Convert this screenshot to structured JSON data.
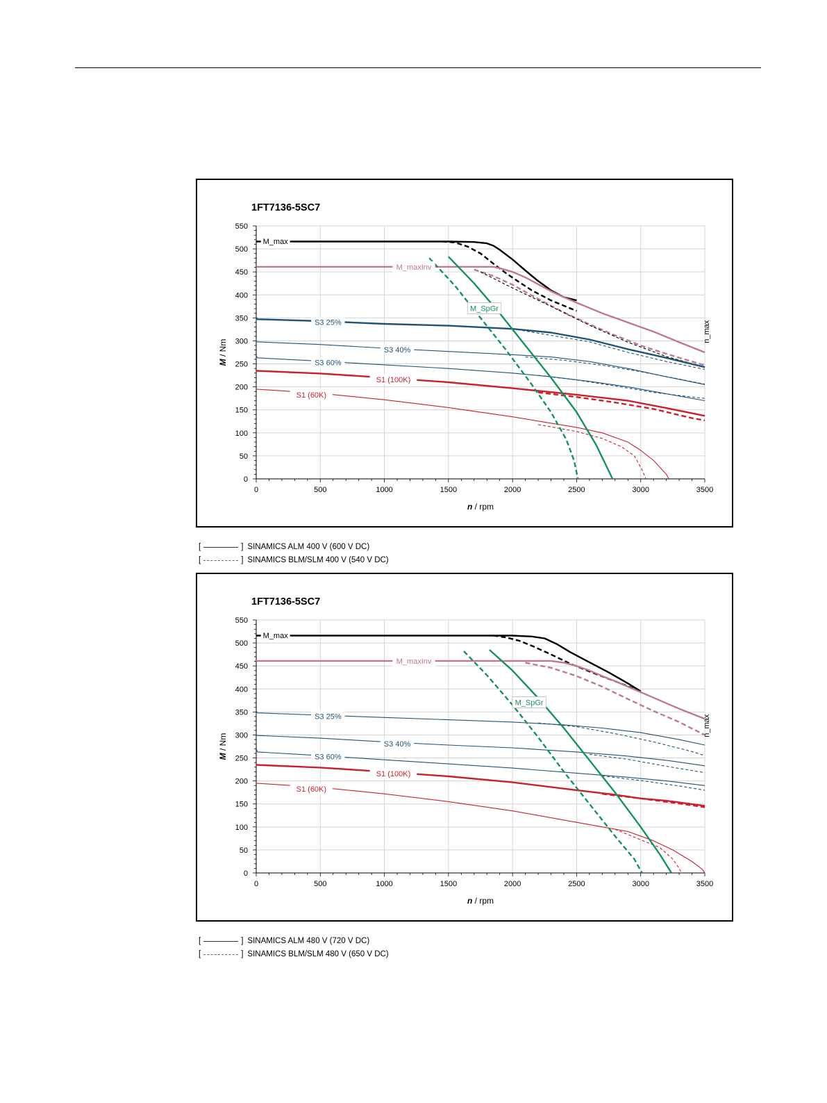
{
  "chart_data": [
    {
      "type": "line",
      "title": "1FT7136-5SC7",
      "xlabel_italic": "n",
      "xlabel_unit": " / rpm",
      "ylabel_italic": "M",
      "ylabel_unit": " / Nm",
      "xlim": [
        0,
        3500
      ],
      "ylim": [
        0,
        550
      ],
      "x_ticks": [
        "0",
        "500",
        "1000",
        "1500",
        "2000",
        "2500",
        "3000",
        "3500"
      ],
      "y_ticks": [
        "0",
        "50",
        "100",
        "150",
        "200",
        "250",
        "300",
        "350",
        "400",
        "450",
        "500",
        "550"
      ],
      "grid": true,
      "nmax_label": "n_max",
      "series": [
        {
          "name": "M_max",
          "label_at": [
            150,
            517
          ],
          "color": "#000000",
          "style": "solid",
          "weight": "thick",
          "x": [
            0,
            1500,
            1700,
            1800,
            1850,
            1900,
            2000,
            2100,
            2200,
            2300,
            2400,
            2500
          ],
          "y": [
            516,
            516,
            515,
            512,
            507,
            498,
            477,
            453,
            430,
            410,
            395,
            388
          ]
        },
        {
          "color": "#000000",
          "style": "dashed",
          "weight": "thick",
          "x": [
            1450,
            1550,
            1650,
            1750,
            1850,
            1950,
            2050,
            2150,
            2300,
            2500
          ],
          "y": [
            516,
            514,
            505,
            490,
            468,
            447,
            428,
            410,
            388,
            365
          ]
        },
        {
          "name": "M_maxInv",
          "label_at": [
            1230,
            461
          ],
          "color": "#c07890",
          "style": "solid",
          "weight": "thick",
          "x": [
            0,
            1850,
            1900,
            2000,
            2100,
            2200,
            2300,
            2400,
            2500,
            2700,
            2900,
            3100,
            3300,
            3500
          ],
          "y": [
            461,
            461,
            458,
            450,
            438,
            423,
            408,
            395,
            383,
            360,
            340,
            320,
            297,
            275
          ]
        },
        {
          "color": "#c07890",
          "style": "dashed",
          "weight": "thick",
          "x": [
            1700,
            1850,
            2000,
            2200,
            2400,
            2600,
            2800,
            3000,
            3200,
            3400,
            3500
          ],
          "y": [
            455,
            441,
            422,
            391,
            362,
            336,
            312,
            290,
            272,
            255,
            247
          ]
        },
        {
          "color": "#000000",
          "style": "dashed",
          "weight": "thin",
          "x": [
            1750,
            2000,
            2300,
            2600,
            2900,
            3200,
            3500
          ],
          "y": [
            450,
            415,
            375,
            334,
            297,
            266,
            243
          ]
        },
        {
          "name": "S3 25%",
          "label_at": [
            560,
            341
          ],
          "color": "#1f5278",
          "style": "solid",
          "weight": "thick",
          "x": [
            0,
            10,
            500,
            1000,
            1500,
            2000,
            2300,
            2600,
            2900,
            3200,
            3500
          ],
          "y": [
            350,
            347,
            343,
            337,
            333,
            326,
            318,
            303,
            282,
            263,
            243
          ]
        },
        {
          "color": "#1f5278",
          "style": "dashed",
          "weight": "thin",
          "x": [
            2000,
            2300,
            2600,
            2900,
            3200,
            3500
          ],
          "y": [
            326,
            312,
            298,
            275,
            255,
            238
          ]
        },
        {
          "name": "S3 40%",
          "label_at": [
            1100,
            281
          ],
          "color": "#1f5278",
          "style": "solid",
          "weight": "thin",
          "x": [
            0,
            500,
            1000,
            1500,
            2000,
            2300,
            2600,
            2900,
            3200,
            3500
          ],
          "y": [
            298,
            292,
            284,
            277,
            270,
            265,
            255,
            240,
            222,
            205
          ]
        },
        {
          "color": "#1f5278",
          "style": "dashed",
          "weight": "thin",
          "x": [
            2100,
            2400,
            2700,
            3000,
            3300,
            3500
          ],
          "y": [
            265,
            258,
            247,
            233,
            217,
            206
          ]
        },
        {
          "name": "S3 60%",
          "label_at": [
            560,
            253
          ],
          "color": "#1f5278",
          "style": "solid",
          "weight": "thin",
          "x": [
            0,
            10,
            500,
            1000,
            1500,
            2000,
            2300,
            2600,
            2900,
            3200,
            3500
          ],
          "y": [
            268,
            263,
            256,
            248,
            240,
            230,
            222,
            212,
            200,
            185,
            170
          ]
        },
        {
          "color": "#1f5278",
          "style": "dashed",
          "weight": "thin",
          "x": [
            2200,
            2500,
            2800,
            3100,
            3400,
            3500
          ],
          "y": [
            225,
            215,
            202,
            188,
            178,
            175
          ]
        },
        {
          "name": "S1 (100K)",
          "label_at": [
            1070,
            216
          ],
          "color": "#cc1f2b",
          "style": "solid",
          "weight": "thick",
          "x": [
            0,
            500,
            1000,
            1500,
            2000,
            2500,
            2900,
            3200,
            3500
          ],
          "y": [
            235,
            229,
            220,
            210,
            197,
            183,
            170,
            154,
            137
          ]
        },
        {
          "color": "#cc1f2b",
          "style": "dashed",
          "weight": "thick",
          "x": [
            2200,
            2500,
            2800,
            3100,
            3400,
            3500
          ],
          "y": [
            188,
            178,
            166,
            152,
            132,
            127
          ]
        },
        {
          "name": "S1 (60K)",
          "label_at": [
            430,
            183
          ],
          "color": "#cc1f2b",
          "style": "solid",
          "weight": "thin",
          "x": [
            0,
            500,
            1000,
            1500,
            2000,
            2500,
            2700,
            2900,
            3000,
            3100,
            3200,
            3220
          ],
          "y": [
            195,
            186,
            172,
            155,
            135,
            112,
            100,
            80,
            62,
            40,
            10,
            0
          ]
        },
        {
          "color": "#cc1f2b",
          "style": "dashed",
          "weight": "thin",
          "x": [
            2200,
            2500,
            2700,
            2850,
            2950,
            3010,
            3040
          ],
          "y": [
            118,
            103,
            88,
            70,
            50,
            20,
            0
          ]
        },
        {
          "name": "M_SpGr",
          "label_at": [
            1780,
            371
          ],
          "color": "#16925a",
          "style": "solid",
          "weight": "thick",
          "x": [
            1500,
            1700,
            1900,
            2100,
            2300,
            2500,
            2650,
            2720,
            2780
          ],
          "y": [
            483,
            425,
            360,
            290,
            220,
            145,
            75,
            35,
            0
          ]
        },
        {
          "color": "#16925a",
          "style": "dashed",
          "weight": "thick",
          "x": [
            1350,
            1550,
            1750,
            1950,
            2150,
            2300,
            2420,
            2480,
            2510
          ],
          "y": [
            480,
            420,
            350,
            280,
            205,
            145,
            85,
            40,
            0
          ]
        }
      ]
    },
    {
      "type": "line",
      "title": "1FT7136-5SC7",
      "xlabel_italic": "n",
      "xlabel_unit": " / rpm",
      "ylabel_italic": "M",
      "ylabel_unit": " / Nm",
      "xlim": [
        0,
        3500
      ],
      "ylim": [
        0,
        550
      ],
      "x_ticks": [
        "0",
        "500",
        "1000",
        "1500",
        "2000",
        "2500",
        "3000",
        "3500"
      ],
      "y_ticks": [
        "0",
        "50",
        "100",
        "150",
        "200",
        "250",
        "300",
        "350",
        "400",
        "450",
        "500",
        "550"
      ],
      "grid": true,
      "nmax_label": "n_max",
      "series": [
        {
          "name": "M_max",
          "label_at": [
            150,
            517
          ],
          "color": "#000000",
          "style": "solid",
          "weight": "thick",
          "x": [
            0,
            2000,
            2150,
            2250,
            2350,
            2450,
            2600,
            2750,
            2900,
            3000
          ],
          "y": [
            516,
            516,
            514,
            510,
            497,
            480,
            458,
            436,
            412,
            395
          ]
        },
        {
          "color": "#000000",
          "style": "dashed",
          "weight": "thick",
          "x": [
            1850,
            1950,
            2050,
            2150,
            2300,
            2450,
            2600,
            2750,
            2900,
            3000
          ],
          "y": [
            516,
            512,
            505,
            494,
            475,
            455,
            438,
            422,
            406,
            395
          ]
        },
        {
          "name": "M_maxInv",
          "label_at": [
            1230,
            461
          ],
          "color": "#c07890",
          "style": "solid",
          "weight": "thick",
          "x": [
            0,
            2300,
            2400,
            2500,
            2600,
            2700,
            2800,
            2900,
            3000,
            3100,
            3200,
            3300,
            3400,
            3500
          ],
          "y": [
            461,
            461,
            457,
            450,
            440,
            428,
            417,
            405,
            393,
            381,
            369,
            357,
            346,
            335
          ]
        },
        {
          "color": "#c07890",
          "style": "dashed",
          "weight": "thick",
          "x": [
            2100,
            2300,
            2500,
            2700,
            2900,
            3100,
            3300,
            3500
          ],
          "y": [
            457,
            446,
            428,
            405,
            378,
            352,
            328,
            300
          ]
        },
        {
          "name": "S3 25%",
          "label_at": [
            560,
            341
          ],
          "color": "#1f5278",
          "style": "solid",
          "weight": "thin",
          "x": [
            0,
            10,
            500,
            1000,
            1500,
            2000,
            2400,
            2700,
            3000,
            3300,
            3500
          ],
          "y": [
            352,
            348,
            343,
            338,
            333,
            328,
            322,
            315,
            305,
            290,
            278
          ]
        },
        {
          "color": "#1f5278",
          "style": "dashed",
          "weight": "thin",
          "x": [
            2200,
            2500,
            2800,
            3100,
            3400,
            3500
          ],
          "y": [
            326,
            318,
            303,
            285,
            264,
            255
          ]
        },
        {
          "name": "S3 40%",
          "label_at": [
            1100,
            281
          ],
          "color": "#1f5278",
          "style": "solid",
          "weight": "thin",
          "x": [
            0,
            500,
            1000,
            1500,
            2000,
            2500,
            2900,
            3200,
            3500
          ],
          "y": [
            299,
            293,
            285,
            278,
            272,
            263,
            254,
            245,
            233
          ]
        },
        {
          "color": "#1f5278",
          "style": "dashed",
          "weight": "thin",
          "x": [
            2600,
            2900,
            3200,
            3500
          ],
          "y": [
            258,
            247,
            232,
            218
          ]
        },
        {
          "name": "S3 60%",
          "label_at": [
            560,
            253
          ],
          "color": "#1f5278",
          "style": "solid",
          "weight": "thin",
          "x": [
            0,
            10,
            500,
            1000,
            1500,
            2000,
            2500,
            2900,
            3200,
            3500
          ],
          "y": [
            270,
            263,
            255,
            246,
            237,
            228,
            217,
            208,
            200,
            190
          ]
        },
        {
          "color": "#1f5278",
          "style": "dashed",
          "weight": "thin",
          "x": [
            2700,
            3000,
            3300,
            3500
          ],
          "y": [
            211,
            201,
            189,
            180
          ]
        },
        {
          "name": "S1 (100K)",
          "label_at": [
            1070,
            216
          ],
          "color": "#cc1f2b",
          "style": "solid",
          "weight": "thick",
          "x": [
            0,
            500,
            1000,
            1500,
            2000,
            2500,
            2800,
            3000,
            3200,
            3500
          ],
          "y": [
            235,
            229,
            220,
            210,
            197,
            180,
            170,
            162,
            157,
            146
          ]
        },
        {
          "color": "#cc1f2b",
          "style": "dashed",
          "weight": "thick",
          "x": [
            2700,
            3000,
            3300,
            3500
          ],
          "y": [
            172,
            162,
            151,
            143
          ]
        },
        {
          "name": "S1 (60K)",
          "label_at": [
            430,
            183
          ],
          "color": "#cc1f2b",
          "style": "solid",
          "weight": "thin",
          "x": [
            0,
            500,
            1000,
            1500,
            2000,
            2500,
            2900,
            3100,
            3250,
            3400,
            3480,
            3500
          ],
          "y": [
            195,
            186,
            172,
            155,
            135,
            110,
            90,
            70,
            50,
            25,
            8,
            0
          ]
        },
        {
          "color": "#cc1f2b",
          "style": "dashed",
          "weight": "thin",
          "x": [
            2800,
            3000,
            3150,
            3250,
            3300,
            3320
          ],
          "y": [
            95,
            72,
            55,
            30,
            10,
            0
          ]
        },
        {
          "name": "M_SpGr",
          "label_at": [
            2130,
            371
          ],
          "color": "#16925a",
          "style": "solid",
          "weight": "thick",
          "x": [
            1820,
            2000,
            2200,
            2400,
            2600,
            2800,
            3000,
            3150,
            3240
          ],
          "y": [
            485,
            440,
            380,
            315,
            245,
            175,
            100,
            40,
            0
          ]
        },
        {
          "color": "#16925a",
          "style": "dashed",
          "weight": "thick",
          "x": [
            1620,
            1800,
            2000,
            2200,
            2400,
            2600,
            2800,
            2950,
            3010
          ],
          "y": [
            482,
            430,
            365,
            295,
            220,
            150,
            80,
            30,
            0
          ]
        }
      ]
    }
  ],
  "legends": [
    {
      "solid": {
        "open": "[",
        "close": "]",
        "text": "SINAMICS ALM 400 V (600 V DC)"
      },
      "dashed": {
        "open": "[",
        "close": "]",
        "text": "SINAMICS BLM/SLM 400 V (540 V DC)"
      }
    },
    {
      "solid": {
        "open": "[",
        "close": "]",
        "text": "SINAMICS ALM 480 V (720 V DC)"
      },
      "dashed": {
        "open": "[",
        "close": "]",
        "text": "SINAMICS BLM/SLM 480 V (650 V DC)"
      }
    }
  ]
}
